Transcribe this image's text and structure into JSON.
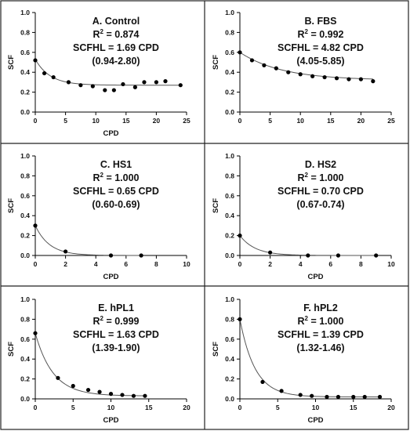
{
  "chart_data": [
    {
      "type": "scatter",
      "title": "A. Control",
      "r2_label": "R",
      "r2_sup": "2",
      "r2_value": " = 0.874",
      "scfhl": "SCFHL = 1.69 CPD",
      "ci": "(0.94-2.80)",
      "xlabel": "CPD",
      "ylabel": "SCF",
      "xlim": [
        0,
        25
      ],
      "ylim": [
        0,
        1.0
      ],
      "xticks": [
        0,
        5,
        10,
        15,
        20,
        25
      ],
      "yticks": [
        0.0,
        0.2,
        0.4,
        0.6,
        0.8,
        1.0
      ],
      "x": [
        0,
        1.5,
        3,
        5.5,
        7.5,
        9.5,
        11.5,
        13,
        14.5,
        16.5,
        18,
        20,
        21.5,
        24
      ],
      "y": [
        0.52,
        0.39,
        0.35,
        0.3,
        0.27,
        0.26,
        0.22,
        0.22,
        0.28,
        0.25,
        0.3,
        0.3,
        0.31,
        0.27
      ],
      "fit": {
        "plateau": 0.27,
        "y0": 0.53,
        "halflife": 1.69
      }
    },
    {
      "type": "scatter",
      "title": "B. FBS",
      "r2_label": "R",
      "r2_sup": "2",
      "r2_value": " = 0.992",
      "scfhl": "SCFHL = 4.82 CPD",
      "ci": "(4.05-5.85)",
      "xlabel": "",
      "ylabel": "SCF",
      "xlim": [
        0,
        25
      ],
      "ylim": [
        0,
        1.0
      ],
      "xticks": [
        0,
        5,
        10,
        15,
        20,
        25
      ],
      "yticks": [
        0.0,
        0.2,
        0.4,
        0.6,
        0.8,
        1.0
      ],
      "x": [
        0,
        2,
        4,
        6,
        8,
        10,
        12,
        14,
        16,
        18,
        20,
        22
      ],
      "y": [
        0.6,
        0.52,
        0.47,
        0.44,
        0.4,
        0.38,
        0.36,
        0.35,
        0.34,
        0.33,
        0.33,
        0.31
      ],
      "fit": {
        "plateau": 0.32,
        "y0": 0.6,
        "halflife": 4.82
      }
    },
    {
      "type": "scatter",
      "title": "C. HS1",
      "r2_label": "R",
      "r2_sup": "2",
      "r2_value": " = 1.000",
      "scfhl": "SCFHL = 0.65 CPD",
      "ci": "(0.60-0.69)",
      "xlabel": "CPD",
      "ylabel": "SCF",
      "xlim": [
        0,
        10
      ],
      "ylim": [
        0,
        1.0
      ],
      "xticks": [
        0,
        2,
        4,
        6,
        8,
        10
      ],
      "yticks": [
        0.0,
        0.2,
        0.4,
        0.6,
        0.8,
        1.0
      ],
      "x": [
        0,
        2,
        5,
        7
      ],
      "y": [
        0.3,
        0.04,
        0.0,
        0.0
      ],
      "fit": {
        "plateau": 0.0,
        "y0": 0.3,
        "halflife": 0.65
      }
    },
    {
      "type": "scatter",
      "title": "D. HS2",
      "r2_label": "R",
      "r2_sup": "2",
      "r2_value": " = 1.000",
      "scfhl": "SCFHL = 0.70 CPD",
      "ci": "(0.67-0.74)",
      "xlabel": "CPD",
      "ylabel": "SCF",
      "xlim": [
        0,
        10
      ],
      "ylim": [
        0,
        1.0
      ],
      "xticks": [
        0,
        2,
        4,
        6,
        8,
        10
      ],
      "yticks": [
        0.0,
        0.2,
        0.4,
        0.6,
        0.8,
        1.0
      ],
      "x": [
        0,
        2,
        4.5,
        6.5,
        9
      ],
      "y": [
        0.2,
        0.03,
        0.0,
        0.0,
        0.0
      ],
      "fit": {
        "plateau": 0.0,
        "y0": 0.2,
        "halflife": 0.7
      }
    },
    {
      "type": "scatter",
      "title": "E. hPL1",
      "r2_label": "R",
      "r2_sup": "2",
      "r2_value": " = 0.999",
      "scfhl": "SCFHL = 1.63 CPD",
      "ci": "(1.39-1.90)",
      "xlabel": "CPD",
      "ylabel": "SCF",
      "xlim": [
        0,
        20
      ],
      "ylim": [
        0,
        1.0
      ],
      "xticks": [
        0,
        5,
        10,
        15,
        20
      ],
      "yticks": [
        0.0,
        0.2,
        0.4,
        0.6,
        0.8,
        1.0
      ],
      "x": [
        0,
        3,
        5,
        7,
        8.5,
        10,
        11.5,
        13,
        14.5
      ],
      "y": [
        0.66,
        0.21,
        0.13,
        0.09,
        0.07,
        0.05,
        0.04,
        0.03,
        0.03
      ],
      "fit": {
        "plateau": 0.03,
        "y0": 0.66,
        "halflife": 1.63
      }
    },
    {
      "type": "scatter",
      "title": "F. hPL2",
      "r2_label": "R",
      "r2_sup": "2",
      "r2_value": " = 1.000",
      "scfhl": "SCFHL = 1.39 CPD",
      "ci": "(1.32-1.46)",
      "xlabel": "CPD",
      "ylabel": "SCF",
      "xlim": [
        0,
        20
      ],
      "ylim": [
        0,
        1.0
      ],
      "xticks": [
        0,
        5,
        10,
        15,
        20
      ],
      "yticks": [
        0.0,
        0.2,
        0.4,
        0.6,
        0.8,
        1.0
      ],
      "x": [
        0,
        3,
        5.5,
        8,
        9.5,
        11.5,
        13,
        15,
        16.5,
        18.5
      ],
      "y": [
        0.8,
        0.17,
        0.08,
        0.04,
        0.03,
        0.02,
        0.02,
        0.02,
        0.02,
        0.02
      ],
      "fit": {
        "plateau": 0.02,
        "y0": 0.8,
        "halflife": 1.39
      }
    }
  ]
}
